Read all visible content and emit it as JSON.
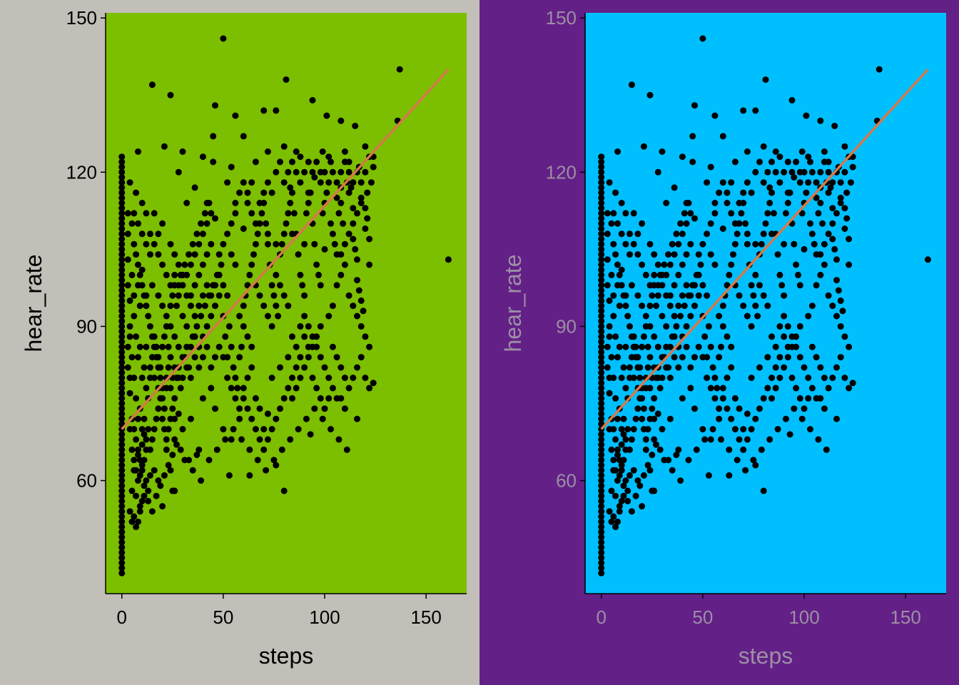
{
  "chart_data": [
    {
      "type": "scatter",
      "panel_background": "#C2BFB9",
      "plot_background": "#7CBE00",
      "point_color": "#000000",
      "fit_line_color": "#D47A4A",
      "text_color": "#000000",
      "title": "",
      "xlabel": "steps",
      "ylabel": "hear_rate",
      "xlim": [
        -8,
        170
      ],
      "ylim": [
        38,
        151
      ],
      "xticks": [
        0,
        50,
        100,
        150
      ],
      "yticks": [
        60,
        90,
        120,
        150
      ],
      "grid": false,
      "legend": "none",
      "fit_line": {
        "x": [
          0,
          161
        ],
        "y": [
          70,
          140
        ]
      },
      "series": [
        {
          "x": [],
          "y": []
        }
      ]
    },
    {
      "type": "scatter",
      "panel_background": "#632087",
      "plot_background": "#00BFFF",
      "point_color": "#000000",
      "fit_line_color": "#D47A4A",
      "text_color": "#9C8FA4",
      "title": "",
      "xlabel": "steps",
      "ylabel": "hear_rate",
      "xlim": [
        -8,
        170
      ],
      "ylim": [
        38,
        151
      ],
      "xticks": [
        0,
        50,
        100,
        150
      ],
      "yticks": [
        60,
        90,
        120,
        150
      ],
      "grid": false,
      "legend": "none",
      "fit_line": {
        "x": [
          0,
          161
        ],
        "y": [
          70,
          140
        ]
      },
      "series": [
        {
          "x": [],
          "y": []
        }
      ]
    }
  ],
  "scatter_points": [
    [
      50,
      146
    ],
    [
      137,
      140
    ],
    [
      81,
      138
    ],
    [
      15,
      137
    ],
    [
      24,
      135
    ],
    [
      94,
      134
    ],
    [
      46,
      133
    ],
    [
      56,
      131
    ],
    [
      70,
      132
    ],
    [
      76,
      132
    ],
    [
      108,
      130
    ],
    [
      101,
      131
    ],
    [
      136,
      130
    ],
    [
      115,
      129
    ],
    [
      8,
      124
    ],
    [
      21,
      125
    ],
    [
      45,
      127
    ],
    [
      60,
      127
    ],
    [
      72,
      124
    ],
    [
      80,
      125
    ],
    [
      88,
      123
    ],
    [
      99,
      124
    ],
    [
      110,
      124
    ],
    [
      120,
      125
    ],
    [
      124,
      123
    ],
    [
      103,
      122
    ],
    [
      95,
      119
    ],
    [
      98,
      118
    ],
    [
      45,
      122
    ],
    [
      40,
      123
    ],
    [
      30,
      124
    ],
    [
      28,
      120
    ],
    [
      66,
      122
    ],
    [
      64,
      118
    ],
    [
      54,
      121
    ],
    [
      52,
      118
    ],
    [
      86,
      120
    ],
    [
      83,
      117
    ],
    [
      117,
      121
    ],
    [
      118,
      115
    ],
    [
      112,
      120
    ],
    [
      108,
      117
    ],
    [
      92,
      116
    ],
    [
      106,
      115
    ],
    [
      114,
      113
    ],
    [
      120,
      113
    ],
    [
      62,
      116
    ],
    [
      36,
      117
    ],
    [
      32,
      114
    ],
    [
      42,
      114
    ],
    [
      46,
      111
    ],
    [
      56,
      112
    ],
    [
      60,
      109
    ],
    [
      72,
      108
    ],
    [
      76,
      106
    ],
    [
      84,
      108
    ],
    [
      90,
      106
    ],
    [
      100,
      105
    ],
    [
      108,
      104
    ],
    [
      116,
      103
    ],
    [
      122,
      102
    ],
    [
      4,
      118
    ],
    [
      7,
      116
    ],
    [
      10,
      114
    ],
    [
      12,
      112
    ],
    [
      16,
      112
    ],
    [
      18,
      108
    ],
    [
      20,
      110
    ],
    [
      24,
      106
    ],
    [
      26,
      104
    ],
    [
      28,
      102
    ],
    [
      14,
      104
    ],
    [
      10,
      101
    ],
    [
      8,
      98
    ],
    [
      6,
      96
    ],
    [
      9,
      94
    ],
    [
      12,
      96
    ],
    [
      15,
      98
    ],
    [
      18,
      96
    ],
    [
      20,
      94
    ],
    [
      22,
      92
    ],
    [
      24,
      90
    ],
    [
      26,
      88
    ],
    [
      28,
      86
    ],
    [
      30,
      92
    ],
    [
      32,
      90
    ],
    [
      34,
      96
    ],
    [
      36,
      98
    ],
    [
      38,
      100
    ],
    [
      40,
      102
    ],
    [
      42,
      104
    ],
    [
      44,
      106
    ],
    [
      48,
      100
    ],
    [
      50,
      98
    ],
    [
      52,
      96
    ],
    [
      54,
      104
    ],
    [
      56,
      102
    ],
    [
      58,
      92
    ],
    [
      60,
      90
    ],
    [
      62,
      88
    ],
    [
      64,
      86
    ],
    [
      66,
      98
    ],
    [
      68,
      96
    ],
    [
      70,
      94
    ],
    [
      72,
      92
    ],
    [
      74,
      90
    ],
    [
      76,
      100
    ],
    [
      78,
      98
    ],
    [
      80,
      96
    ],
    [
      82,
      94
    ],
    [
      84,
      88
    ],
    [
      86,
      86
    ],
    [
      88,
      84
    ],
    [
      90,
      92
    ],
    [
      92,
      90
    ],
    [
      94,
      88
    ],
    [
      96,
      86
    ],
    [
      98,
      84
    ],
    [
      100,
      82
    ],
    [
      102,
      80
    ],
    [
      104,
      78
    ],
    [
      106,
      76
    ],
    [
      108,
      76
    ],
    [
      110,
      74
    ],
    [
      112,
      96
    ],
    [
      114,
      94
    ],
    [
      116,
      92
    ],
    [
      118,
      90
    ],
    [
      120,
      88
    ],
    [
      122,
      86
    ],
    [
      124,
      79
    ],
    [
      161,
      103
    ],
    [
      116,
      72
    ],
    [
      93,
      69
    ],
    [
      80,
      58
    ],
    [
      76,
      63
    ],
    [
      63,
      61
    ],
    [
      53,
      61
    ],
    [
      37,
      65
    ],
    [
      33,
      64
    ],
    [
      30,
      70
    ],
    [
      26,
      68
    ],
    [
      24,
      62
    ],
    [
      22,
      66
    ],
    [
      20,
      55
    ],
    [
      18,
      60
    ],
    [
      16,
      62
    ],
    [
      14,
      61
    ],
    [
      12,
      60
    ],
    [
      10,
      63
    ],
    [
      8,
      65
    ],
    [
      6,
      62
    ],
    [
      5,
      58
    ],
    [
      7,
      57
    ],
    [
      4,
      54
    ],
    [
      9,
      55
    ],
    [
      11,
      59
    ],
    [
      13,
      56
    ],
    [
      26,
      58
    ],
    [
      28,
      73
    ],
    [
      34,
      72
    ],
    [
      38,
      66
    ],
    [
      40,
      76
    ],
    [
      44,
      78
    ],
    [
      46,
      74
    ],
    [
      50,
      70
    ],
    [
      54,
      68
    ],
    [
      58,
      72
    ],
    [
      60,
      78
    ],
    [
      62,
      80
    ],
    [
      64,
      82
    ],
    [
      66,
      76
    ],
    [
      68,
      74
    ],
    [
      70,
      70
    ],
    [
      72,
      73
    ],
    [
      74,
      80
    ],
    [
      78,
      82
    ],
    [
      82,
      84
    ],
    [
      84,
      76
    ],
    [
      86,
      78
    ],
    [
      88,
      80
    ],
    [
      90,
      82
    ],
    [
      92,
      84
    ],
    [
      94,
      86
    ],
    [
      96,
      88
    ],
    [
      98,
      90
    ],
    [
      102,
      92
    ],
    [
      104,
      94
    ],
    [
      106,
      98
    ],
    [
      108,
      100
    ],
    [
      110,
      102
    ],
    [
      112,
      108
    ],
    [
      114,
      110
    ],
    [
      116,
      112
    ],
    [
      118,
      114
    ],
    [
      121,
      116
    ],
    [
      123,
      118
    ],
    [
      5,
      100
    ],
    [
      6,
      92
    ],
    [
      7,
      88
    ],
    [
      8,
      84
    ],
    [
      9,
      86
    ],
    [
      10,
      80
    ],
    [
      11,
      82
    ],
    [
      12,
      78
    ],
    [
      13,
      76
    ],
    [
      14,
      80
    ],
    [
      15,
      84
    ],
    [
      16,
      88
    ],
    [
      17,
      86
    ],
    [
      18,
      84
    ],
    [
      19,
      82
    ],
    [
      20,
      78
    ],
    [
      21,
      74
    ],
    [
      22,
      78
    ],
    [
      23,
      82
    ],
    [
      24,
      84
    ],
    [
      25,
      80
    ],
    [
      26,
      76
    ],
    [
      27,
      80
    ],
    [
      28,
      82
    ],
    [
      29,
      78
    ],
    [
      30,
      80
    ],
    [
      31,
      84
    ],
    [
      32,
      86
    ],
    [
      33,
      82
    ],
    [
      34,
      80
    ],
    [
      35,
      88
    ],
    [
      36,
      84
    ],
    [
      37,
      90
    ],
    [
      38,
      86
    ],
    [
      39,
      92
    ],
    [
      40,
      88
    ],
    [
      41,
      94
    ],
    [
      42,
      90
    ],
    [
      43,
      96
    ],
    [
      44,
      92
    ],
    [
      45,
      98
    ],
    [
      46,
      94
    ],
    [
      47,
      100
    ],
    [
      48,
      96
    ],
    [
      49,
      102
    ],
    [
      50,
      92
    ],
    [
      51,
      88
    ],
    [
      52,
      84
    ],
    [
      53,
      90
    ],
    [
      54,
      86
    ],
    [
      55,
      82
    ],
    [
      56,
      80
    ],
    [
      57,
      78
    ],
    [
      58,
      84
    ],
    [
      59,
      86
    ],
    [
      60,
      94
    ],
    [
      61,
      96
    ],
    [
      62,
      98
    ],
    [
      63,
      100
    ],
    [
      64,
      102
    ],
    [
      65,
      104
    ],
    [
      66,
      106
    ],
    [
      67,
      108
    ],
    [
      68,
      110
    ],
    [
      69,
      112
    ],
    [
      70,
      114
    ],
    [
      71,
      110
    ],
    [
      72,
      106
    ],
    [
      73,
      102
    ],
    [
      74,
      98
    ],
    [
      75,
      96
    ],
    [
      76,
      94
    ],
    [
      77,
      92
    ],
    [
      78,
      104
    ],
    [
      79,
      106
    ],
    [
      80,
      108
    ],
    [
      81,
      110
    ],
    [
      82,
      112
    ],
    [
      83,
      114
    ],
    [
      84,
      116
    ],
    [
      85,
      112
    ],
    [
      86,
      108
    ],
    [
      87,
      104
    ],
    [
      88,
      100
    ],
    [
      89,
      98
    ],
    [
      90,
      96
    ],
    [
      91,
      112
    ],
    [
      92,
      114
    ],
    [
      93,
      116
    ],
    [
      94,
      110
    ],
    [
      95,
      106
    ],
    [
      96,
      102
    ],
    [
      97,
      100
    ],
    [
      98,
      98
    ],
    [
      99,
      112
    ],
    [
      100,
      114
    ],
    [
      101,
      116
    ],
    [
      102,
      118
    ],
    [
      103,
      110
    ],
    [
      104,
      108
    ],
    [
      105,
      106
    ],
    [
      106,
      104
    ],
    [
      107,
      112
    ],
    [
      108,
      114
    ],
    [
      109,
      110
    ],
    [
      110,
      106
    ],
    [
      111,
      118
    ],
    [
      112,
      122
    ],
    [
      113,
      117
    ],
    [
      114,
      107
    ],
    [
      115,
      105
    ],
    [
      116,
      99
    ],
    [
      117,
      97
    ],
    [
      118,
      95
    ],
    [
      119,
      93
    ],
    [
      120,
      109
    ],
    [
      121,
      111
    ],
    [
      122,
      107
    ],
    [
      6,
      106
    ],
    [
      7,
      104
    ],
    [
      8,
      102
    ],
    [
      9,
      100
    ],
    [
      10,
      98
    ],
    [
      11,
      96
    ],
    [
      12,
      94
    ],
    [
      13,
      92
    ],
    [
      14,
      90
    ],
    [
      15,
      88
    ],
    [
      16,
      86
    ],
    [
      17,
      84
    ],
    [
      18,
      82
    ],
    [
      19,
      80
    ],
    [
      20,
      86
    ],
    [
      21,
      88
    ],
    [
      22,
      90
    ],
    [
      23,
      86
    ],
    [
      24,
      94
    ],
    [
      25,
      96
    ],
    [
      26,
      98
    ],
    [
      27,
      94
    ],
    [
      28,
      96
    ],
    [
      29,
      100
    ],
    [
      30,
      98
    ],
    [
      31,
      102
    ],
    [
      32,
      100
    ],
    [
      33,
      104
    ],
    [
      34,
      102
    ],
    [
      35,
      106
    ],
    [
      36,
      104
    ],
    [
      37,
      108
    ],
    [
      38,
      106
    ],
    [
      39,
      110
    ],
    [
      40,
      108
    ],
    [
      41,
      112
    ],
    [
      42,
      110
    ],
    [
      43,
      114
    ],
    [
      44,
      112
    ],
    [
      5,
      84
    ],
    [
      6,
      80
    ],
    [
      7,
      76
    ],
    [
      8,
      72
    ],
    [
      9,
      74
    ],
    [
      10,
      70
    ],
    [
      11,
      72
    ],
    [
      12,
      68
    ],
    [
      13,
      70
    ],
    [
      14,
      66
    ],
    [
      15,
      68
    ],
    [
      16,
      70
    ],
    [
      17,
      72
    ],
    [
      18,
      74
    ],
    [
      19,
      76
    ],
    [
      20,
      72
    ],
    [
      21,
      70
    ],
    [
      22,
      68
    ],
    [
      23,
      70
    ],
    [
      24,
      72
    ],
    [
      25,
      74
    ],
    [
      26,
      72
    ],
    [
      5,
      72
    ],
    [
      6,
      70
    ],
    [
      7,
      68
    ],
    [
      8,
      66
    ],
    [
      9,
      64
    ],
    [
      10,
      62
    ],
    [
      11,
      64
    ],
    [
      12,
      66
    ],
    [
      5,
      66
    ],
    [
      6,
      64
    ],
    [
      7,
      62
    ],
    [
      8,
      60
    ],
    [
      9,
      61
    ],
    [
      10,
      67
    ],
    [
      11,
      69
    ],
    [
      4,
      90
    ],
    [
      4,
      88
    ],
    [
      4,
      95
    ],
    [
      4,
      80
    ],
    [
      4,
      77
    ],
    [
      4,
      70
    ],
    [
      3,
      82
    ],
    [
      3,
      86
    ],
    [
      3,
      98
    ],
    [
      3,
      103
    ],
    [
      3,
      108
    ],
    [
      3,
      112
    ],
    [
      5,
      110
    ],
    [
      6,
      112
    ],
    [
      8,
      110
    ],
    [
      10,
      108
    ],
    [
      12,
      106
    ],
    [
      14,
      108
    ],
    [
      16,
      106
    ],
    [
      18,
      104
    ],
    [
      20,
      102
    ],
    [
      22,
      100
    ],
    [
      24,
      98
    ],
    [
      26,
      100
    ],
    [
      28,
      98
    ],
    [
      30,
      100
    ],
    [
      32,
      96
    ],
    [
      34,
      94
    ],
    [
      36,
      92
    ],
    [
      38,
      94
    ],
    [
      40,
      96
    ],
    [
      42,
      98
    ],
    [
      44,
      96
    ],
    [
      46,
      98
    ],
    [
      48,
      104
    ],
    [
      50,
      106
    ],
    [
      52,
      108
    ],
    [
      54,
      110
    ],
    [
      56,
      114
    ],
    [
      58,
      116
    ],
    [
      60,
      118
    ],
    [
      62,
      114
    ],
    [
      64,
      112
    ],
    [
      66,
      110
    ],
    [
      68,
      114
    ],
    [
      70,
      116
    ],
    [
      72,
      118
    ],
    [
      74,
      116
    ],
    [
      76,
      120
    ],
    [
      78,
      122
    ],
    [
      80,
      118
    ],
    [
      82,
      120
    ],
    [
      84,
      122
    ],
    [
      86,
      124
    ],
    [
      88,
      118
    ],
    [
      90,
      120
    ],
    [
      92,
      122
    ],
    [
      94,
      120
    ],
    [
      96,
      122
    ],
    [
      98,
      120
    ],
    [
      100,
      120
    ],
    [
      102,
      123
    ],
    [
      104,
      120
    ],
    [
      106,
      118
    ],
    [
      108,
      120
    ],
    [
      110,
      122
    ],
    [
      112,
      116
    ],
    [
      114,
      118
    ],
    [
      116,
      120
    ],
    [
      118,
      118
    ],
    [
      120,
      120
    ],
    [
      122,
      123
    ],
    [
      124,
      121
    ],
    [
      12,
      86
    ],
    [
      14,
      82
    ],
    [
      16,
      80
    ],
    [
      18,
      78
    ],
    [
      20,
      76
    ],
    [
      22,
      80
    ],
    [
      24,
      78
    ],
    [
      26,
      82
    ],
    [
      28,
      80
    ],
    [
      30,
      84
    ],
    [
      32,
      82
    ],
    [
      34,
      86
    ],
    [
      36,
      88
    ],
    [
      38,
      82
    ],
    [
      40,
      84
    ],
    [
      42,
      86
    ],
    [
      44,
      82
    ],
    [
      46,
      84
    ],
    [
      48,
      86
    ],
    [
      50,
      84
    ],
    [
      52,
      80
    ],
    [
      54,
      78
    ],
    [
      56,
      76
    ],
    [
      58,
      74
    ],
    [
      60,
      76
    ],
    [
      62,
      74
    ],
    [
      64,
      72
    ],
    [
      66,
      70
    ],
    [
      68,
      68
    ],
    [
      70,
      66
    ],
    [
      72,
      68
    ],
    [
      74,
      70
    ],
    [
      76,
      72
    ],
    [
      78,
      74
    ],
    [
      80,
      76
    ],
    [
      82,
      78
    ],
    [
      84,
      80
    ],
    [
      86,
      82
    ],
    [
      88,
      90
    ],
    [
      90,
      88
    ],
    [
      92,
      86
    ],
    [
      94,
      80
    ],
    [
      96,
      78
    ],
    [
      98,
      76
    ],
    [
      100,
      74
    ],
    [
      102,
      76
    ],
    [
      104,
      86
    ],
    [
      106,
      84
    ],
    [
      108,
      82
    ],
    [
      110,
      80
    ],
    [
      112,
      78
    ],
    [
      114,
      80
    ],
    [
      116,
      82
    ],
    [
      118,
      84
    ],
    [
      120,
      80
    ],
    [
      122,
      78
    ],
    [
      11,
      57
    ],
    [
      13,
      58
    ],
    [
      15,
      54
    ],
    [
      17,
      57
    ],
    [
      19,
      59
    ],
    [
      21,
      61
    ],
    [
      23,
      63
    ],
    [
      25,
      65
    ],
    [
      27,
      67
    ],
    [
      29,
      66
    ],
    [
      31,
      64
    ],
    [
      35,
      62
    ],
    [
      39,
      60
    ],
    [
      43,
      64
    ],
    [
      47,
      66
    ],
    [
      51,
      68
    ],
    [
      55,
      70
    ],
    [
      59,
      68
    ],
    [
      63,
      66
    ],
    [
      67,
      64
    ],
    [
      71,
      62
    ],
    [
      75,
      64
    ],
    [
      79,
      66
    ],
    [
      83,
      68
    ],
    [
      87,
      70
    ],
    [
      91,
      72
    ],
    [
      95,
      74
    ],
    [
      99,
      72
    ],
    [
      103,
      70
    ],
    [
      107,
      68
    ],
    [
      111,
      66
    ],
    [
      5,
      52
    ],
    [
      6,
      53
    ],
    [
      7,
      51
    ],
    [
      8,
      52
    ],
    [
      9,
      54
    ],
    [
      10,
      56
    ],
    [
      25,
      58
    ]
  ]
}
